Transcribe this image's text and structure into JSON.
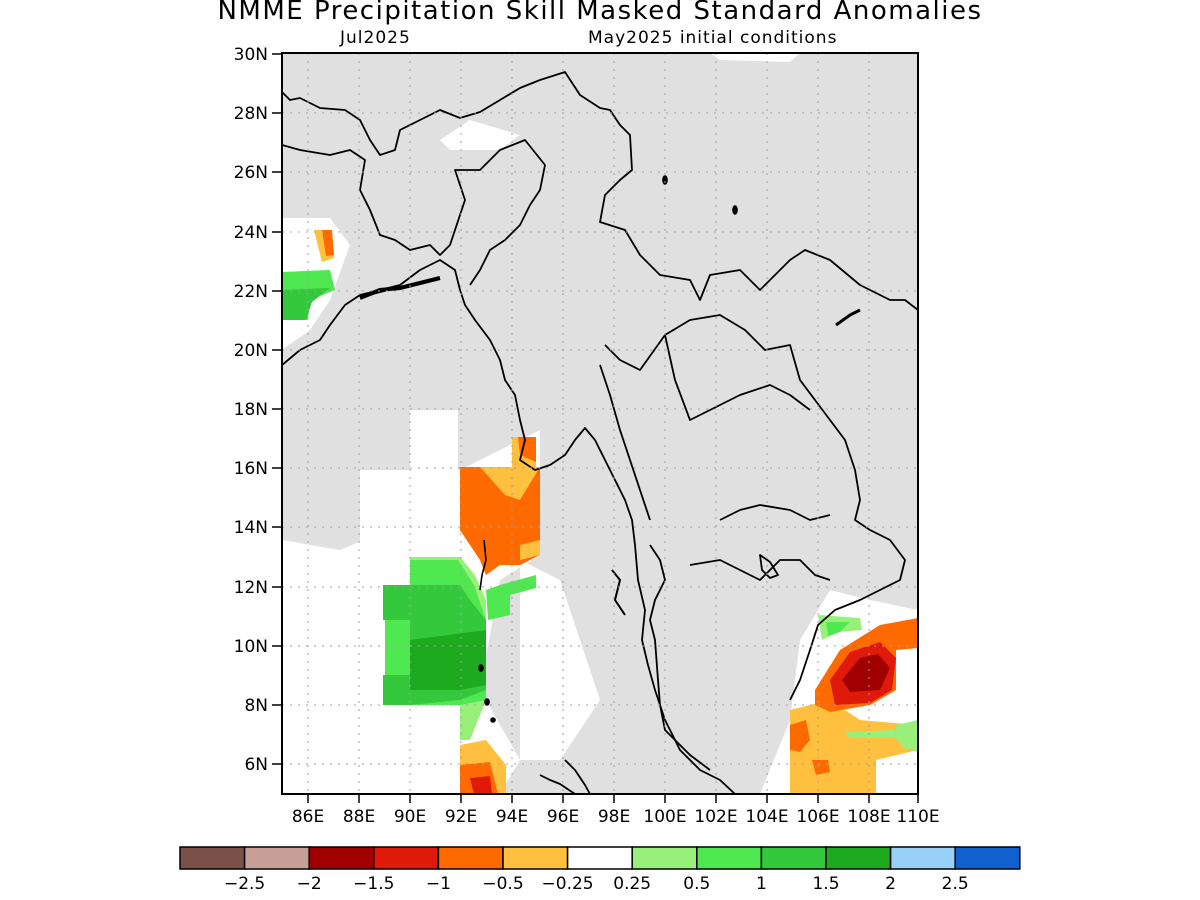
{
  "title": "NMME Precipitation Skill Masked Standard Anomalies",
  "subtitle_left": "Jul2025",
  "subtitle_right": "May2025 initial conditions",
  "lat_ticks": [
    "30N",
    "28N",
    "26N",
    "24N",
    "22N",
    "20N",
    "18N",
    "16N",
    "14N",
    "12N",
    "10N",
    "8N",
    "6N"
  ],
  "lon_ticks": [
    "86E",
    "88E",
    "90E",
    "92E",
    "94E",
    "96E",
    "98E",
    "100E",
    "102E",
    "104E",
    "106E",
    "108E",
    "110E"
  ],
  "colorbar": {
    "colors": [
      "#7b5048",
      "#c9a098",
      "#a00000",
      "#e01a0a",
      "#ff6a00",
      "#ffc040",
      "#ffffff",
      "#98f07a",
      "#50e850",
      "#34c83c",
      "#1eaa1e",
      "#98d0f8",
      "#1060d0"
    ],
    "labels": [
      "−2.5",
      "−2",
      "−1.5",
      "−1",
      "−0.5",
      "−0.25",
      "0.25",
      "0.5",
      "1",
      "1.5",
      "2",
      "2.5"
    ]
  },
  "colors": {
    "land_mask": "#e0e0e0",
    "neutral": "#ffffff",
    "coast": "#000000",
    "grid": "#a0a0a0"
  }
}
